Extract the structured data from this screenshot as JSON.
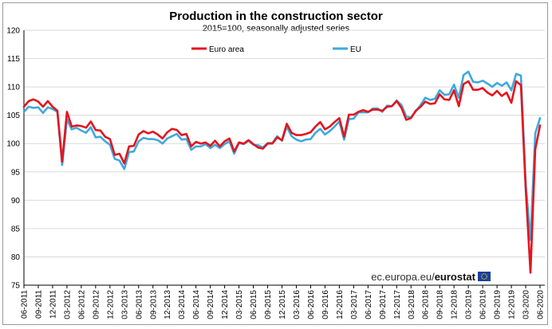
{
  "chart_data": {
    "type": "line",
    "title": "Production in the construction sector",
    "subtitle": "2015=100, seasonally adjusted series",
    "ylim": [
      75,
      120
    ],
    "yticks": [
      75,
      80,
      85,
      90,
      95,
      100,
      105,
      110,
      115,
      120
    ],
    "xticks": [
      "06-2011",
      "09-2011",
      "12-2011",
      "03-2012",
      "06-2012",
      "09-2012",
      "12-2012",
      "03-2013",
      "06-2013",
      "09-2013",
      "12-2013",
      "03-2014",
      "06-2014",
      "09-2014",
      "12-2014",
      "03-2015",
      "06-2015",
      "09-2015",
      "12-2015",
      "03-2016",
      "06-2016",
      "09-2016",
      "12-2016",
      "03-2017",
      "06-2017",
      "09-2017",
      "12-2017",
      "03-2018",
      "06-2018",
      "09-2018",
      "12-2018",
      "03-2019",
      "06-2019",
      "09-2019",
      "12-2019",
      "03-2020",
      "06-2020"
    ],
    "x_start": "06-2011",
    "x_end": "06-2020",
    "series": [
      {
        "name": "Euro area",
        "color": "#e3151f",
        "values": [
          106.5,
          107.5,
          107.8,
          107.4,
          106.5,
          107.5,
          106.5,
          105.8,
          96.8,
          105.6,
          103.0,
          103.2,
          103.1,
          102.8,
          103.9,
          102.4,
          102.3,
          101.2,
          100.8,
          98.0,
          98.2,
          96.5,
          99.5,
          99.6,
          101.6,
          102.2,
          101.8,
          102.1,
          101.6,
          100.9,
          102.0,
          102.6,
          102.4,
          101.5,
          101.7,
          99.5,
          100.3,
          100.0,
          100.2,
          99.6,
          100.5,
          99.5,
          100.4,
          100.9,
          98.6,
          100.2,
          100.0,
          100.6,
          99.9,
          99.3,
          99.1,
          100.0,
          100.0,
          101.1,
          100.6,
          103.5,
          101.9,
          101.5,
          101.5,
          101.7,
          102.0,
          103.0,
          103.8,
          102.5,
          103.0,
          103.8,
          104.5,
          101.2,
          105.1,
          105.1,
          105.6,
          105.9,
          105.6,
          106.0,
          106.0,
          105.8,
          106.5,
          106.6,
          107.5,
          106.3,
          104.2,
          104.5,
          105.8,
          106.5,
          107.4,
          107.0,
          107.1,
          108.7,
          107.8,
          107.7,
          109.4,
          106.6,
          110.5,
          111.0,
          109.5,
          109.5,
          109.8,
          109.0,
          108.5,
          109.3,
          108.4,
          109.0,
          107.2,
          111.0,
          110.3,
          92.0,
          77.2,
          99.0,
          103.2
        ],
        "dash": null
      },
      {
        "name": "EU",
        "color": "#3fa9dc",
        "values": [
          105.6,
          106.5,
          106.3,
          106.4,
          105.4,
          106.4,
          106.1,
          105.6,
          96.2,
          104.3,
          102.5,
          102.8,
          102.3,
          101.9,
          102.9,
          101.1,
          101.2,
          100.4,
          99.8,
          97.3,
          97.0,
          95.5,
          98.5,
          98.6,
          100.4,
          101.0,
          100.8,
          100.8,
          100.6,
          100.0,
          100.9,
          101.3,
          101.7,
          100.7,
          100.8,
          98.9,
          99.5,
          99.5,
          99.9,
          99.2,
          99.8,
          99.2,
          99.9,
          100.4,
          98.2,
          100.1,
          99.9,
          100.5,
          99.8,
          99.7,
          99.3,
          100.1,
          100.1,
          101.3,
          100.5,
          103.0,
          101.3,
          100.7,
          100.4,
          100.7,
          100.8,
          101.9,
          102.6,
          101.6,
          102.2,
          103.0,
          103.9,
          100.7,
          104.3,
          104.4,
          105.5,
          105.5,
          105.5,
          106.2,
          106.2,
          105.6,
          106.7,
          106.6,
          107.6,
          106.8,
          104.8,
          104.6,
          105.7,
          106.8,
          108.1,
          107.7,
          107.9,
          109.4,
          108.6,
          108.7,
          110.4,
          108.1,
          112.1,
          112.7,
          110.9,
          110.8,
          111.1,
          110.6,
          110.0,
          110.7,
          110.2,
          110.8,
          109.4,
          112.3,
          112.0,
          93.0,
          83.0,
          101.8,
          104.5
        ],
        "dash": null
      }
    ],
    "legend": [
      "Euro area",
      "EU"
    ],
    "legend_position": "top"
  },
  "source": {
    "prefix": "ec.europa.eu/",
    "brand": "eurostat"
  },
  "colors": {
    "euro_area": "#e3151f",
    "eu": "#3fa9dc",
    "grid": "#d9d9d9"
  }
}
